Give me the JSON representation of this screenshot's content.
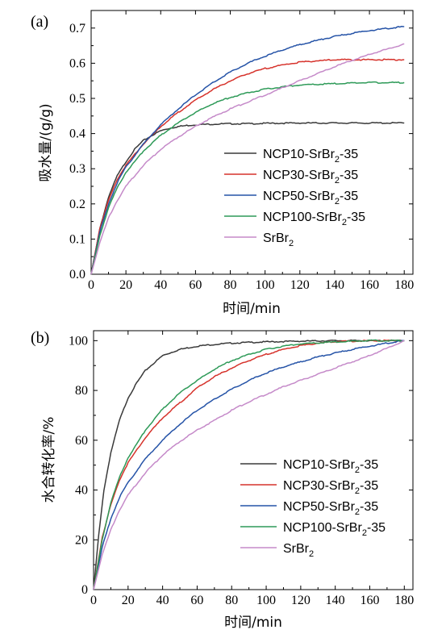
{
  "chart_data": [
    {
      "type": "line",
      "panel_label": "(a)",
      "xlabel": "时间/min",
      "ylabel": "吸水量/(g/g)",
      "xlim": [
        0,
        185
      ],
      "ylim": [
        0,
        0.75
      ],
      "xticks": [
        0,
        20,
        40,
        60,
        80,
        100,
        120,
        140,
        160,
        180
      ],
      "yticks": [
        "0.0",
        "0.1",
        "0.2",
        "0.3",
        "0.4",
        "0.5",
        "0.6",
        "0.7"
      ],
      "legend_position": "lower-right",
      "series": [
        {
          "name": "NCP10-SrBr2-35",
          "label_parts": [
            "NCP10-SrBr",
            "2",
            "-35"
          ],
          "color": "#3a3a3a",
          "x": [
            0,
            5,
            10,
            15,
            20,
            25,
            30,
            35,
            40,
            45,
            50,
            55,
            60,
            70,
            80,
            90,
            100,
            120,
            140,
            160,
            180
          ],
          "y": [
            0,
            0.13,
            0.22,
            0.28,
            0.32,
            0.355,
            0.38,
            0.395,
            0.408,
            0.415,
            0.42,
            0.423,
            0.425,
            0.427,
            0.428,
            0.428,
            0.429,
            0.43,
            0.43,
            0.43,
            0.43
          ]
        },
        {
          "name": "NCP30-SrBr2-35",
          "label_parts": [
            "NCP30-SrBr",
            "2",
            "-35"
          ],
          "color": "#d6322b",
          "x": [
            0,
            5,
            10,
            15,
            20,
            30,
            40,
            50,
            60,
            70,
            80,
            90,
            100,
            110,
            120,
            130,
            140,
            150,
            160,
            170,
            180
          ],
          "y": [
            0,
            0.13,
            0.21,
            0.27,
            0.31,
            0.37,
            0.42,
            0.46,
            0.495,
            0.525,
            0.55,
            0.57,
            0.585,
            0.595,
            0.603,
            0.607,
            0.61,
            0.61,
            0.61,
            0.61,
            0.61
          ]
        },
        {
          "name": "NCP50-SrBr2-35",
          "label_parts": [
            "NCP50-SrBr",
            "2",
            "-35"
          ],
          "color": "#2553a7",
          "x": [
            0,
            5,
            10,
            15,
            20,
            30,
            40,
            50,
            60,
            70,
            80,
            90,
            100,
            110,
            120,
            130,
            140,
            150,
            160,
            170,
            180
          ],
          "y": [
            0,
            0.12,
            0.2,
            0.26,
            0.305,
            0.37,
            0.425,
            0.47,
            0.51,
            0.545,
            0.575,
            0.6,
            0.62,
            0.638,
            0.653,
            0.665,
            0.676,
            0.685,
            0.693,
            0.699,
            0.704
          ]
        },
        {
          "name": "NCP100-SrBr2-35",
          "label_parts": [
            "NCP100-SrBr",
            "2",
            "-35"
          ],
          "color": "#2e9a58",
          "x": [
            0,
            5,
            10,
            15,
            20,
            30,
            40,
            50,
            60,
            70,
            80,
            90,
            100,
            110,
            120,
            140,
            160,
            180
          ],
          "y": [
            0,
            0.11,
            0.19,
            0.245,
            0.29,
            0.35,
            0.395,
            0.43,
            0.46,
            0.485,
            0.503,
            0.516,
            0.526,
            0.533,
            0.538,
            0.542,
            0.545,
            0.545
          ]
        },
        {
          "name": "SrBr2",
          "label_parts": [
            "SrBr",
            "2",
            ""
          ],
          "color": "#c58ac9",
          "x": [
            0,
            5,
            10,
            15,
            20,
            30,
            40,
            50,
            60,
            70,
            80,
            90,
            100,
            110,
            120,
            130,
            140,
            150,
            160,
            170,
            180
          ],
          "y": [
            0,
            0.09,
            0.16,
            0.21,
            0.25,
            0.31,
            0.355,
            0.39,
            0.42,
            0.447,
            0.47,
            0.49,
            0.51,
            0.53,
            0.55,
            0.57,
            0.59,
            0.608,
            0.625,
            0.64,
            0.655
          ]
        }
      ]
    },
    {
      "type": "line",
      "panel_label": "(b)",
      "xlabel": "时间/min",
      "ylabel": "水合转化率/%",
      "xlim": [
        0,
        185
      ],
      "ylim": [
        0,
        104
      ],
      "xticks": [
        0,
        20,
        40,
        60,
        80,
        100,
        120,
        140,
        160,
        180
      ],
      "yticks": [
        "0",
        "20",
        "40",
        "60",
        "80",
        "100"
      ],
      "legend_position": "lower-right",
      "series": [
        {
          "name": "NCP10-SrBr2-35",
          "label_parts": [
            "NCP10-SrBr",
            "2",
            "-35"
          ],
          "color": "#3a3a3a",
          "x": [
            0,
            3,
            6,
            10,
            15,
            20,
            25,
            30,
            35,
            40,
            50,
            60,
            70,
            80,
            90,
            100,
            120,
            140,
            160,
            180
          ],
          "y": [
            0,
            22,
            40,
            55,
            68,
            77,
            83,
            88,
            91,
            94,
            96.5,
            97.8,
            98.5,
            99,
            99.3,
            99.5,
            99.8,
            100,
            100,
            100
          ]
        },
        {
          "name": "NCP30-SrBr2-35",
          "label_parts": [
            "NCP30-SrBr",
            "2",
            "-35"
          ],
          "color": "#d6322b",
          "x": [
            0,
            5,
            10,
            15,
            20,
            30,
            40,
            50,
            60,
            70,
            80,
            90,
            100,
            110,
            120,
            130,
            140,
            160,
            180
          ],
          "y": [
            0,
            21,
            34,
            44,
            51,
            61,
            69,
            75,
            81,
            85.5,
            89,
            92,
            94.5,
            96.5,
            98,
            99,
            99.6,
            100,
            100
          ]
        },
        {
          "name": "NCP50-SrBr2-35",
          "label_parts": [
            "NCP50-SrBr",
            "2",
            "-35"
          ],
          "color": "#2553a7",
          "x": [
            0,
            5,
            10,
            15,
            20,
            30,
            40,
            50,
            60,
            70,
            80,
            90,
            100,
            110,
            120,
            130,
            140,
            150,
            160,
            170,
            180
          ],
          "y": [
            0,
            17,
            28.5,
            37,
            43,
            52.5,
            60,
            66.5,
            72,
            76.5,
            80.5,
            84,
            87,
            89.5,
            91.5,
            93.5,
            95,
            96.5,
            97.8,
            99,
            100
          ]
        },
        {
          "name": "NCP100-SrBr2-35",
          "label_parts": [
            "NCP100-SrBr",
            "2",
            "-35"
          ],
          "color": "#2e9a58",
          "x": [
            0,
            5,
            10,
            15,
            20,
            30,
            40,
            50,
            60,
            70,
            80,
            90,
            100,
            110,
            120,
            140,
            160,
            180
          ],
          "y": [
            0,
            20,
            35,
            45,
            53,
            64,
            72.5,
            79,
            84,
            88.5,
            92,
            94.5,
            96.5,
            97.8,
            98.7,
            99.5,
            100,
            100
          ]
        },
        {
          "name": "SrBr2",
          "label_parts": [
            "SrBr",
            "2",
            ""
          ],
          "color": "#c58ac9",
          "x": [
            0,
            5,
            10,
            15,
            20,
            30,
            40,
            50,
            60,
            70,
            80,
            90,
            100,
            110,
            120,
            130,
            140,
            150,
            160,
            170,
            180
          ],
          "y": [
            0,
            14,
            24,
            32,
            38,
            47,
            54,
            59.5,
            64,
            68,
            72,
            75.5,
            78.5,
            81.5,
            84,
            86.5,
            89,
            91.5,
            94,
            97,
            100
          ]
        }
      ]
    }
  ]
}
